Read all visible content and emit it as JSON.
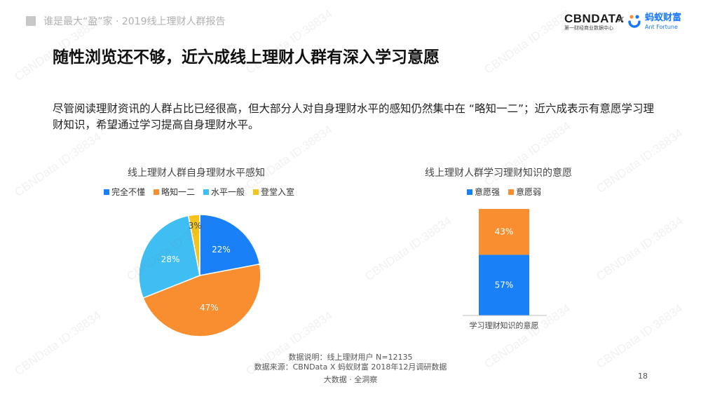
{
  "header": {
    "report_title": "谁是最大“盈”家 · 2019线上理财人群报告",
    "logo_cbn": "CBNDATA",
    "logo_cbn_sub": "第一财经商业数据中心",
    "logo_times": "×",
    "logo_ant": "蚂蚁财富",
    "logo_ant_sub": "Ant Fortune"
  },
  "title": "随性浏览还不够，近六成线上理财人群有深入学习意愿",
  "description": "尽管阅读理财资讯的人群占比已经很高，但大部分人对自身理财水平的感知仍然集中在 “略知一二”；近六成表示有意愿学习理财知识，希望通过学习提高自身理财水平。",
  "colors": {
    "blue": "#1a80f7",
    "orange": "#f88e2f",
    "light_blue": "#3fbef4",
    "yellow": "#f4c41b"
  },
  "chart_data": [
    {
      "type": "pie",
      "title": "线上理财人群自身理财水平感知",
      "categories": [
        "完全不懂",
        "略知一二",
        "水平一般",
        "登堂入室"
      ],
      "values": [
        22,
        47,
        28,
        3
      ],
      "labels": [
        "22%",
        "47%",
        "28%",
        "3%"
      ],
      "unit": "%",
      "colors": [
        "#1a80f7",
        "#f88e2f",
        "#3fbef4",
        "#f4c41b"
      ],
      "legend_position": "top"
    },
    {
      "type": "bar",
      "stacked": true,
      "title": "线上理财人群学习理财知识的意愿",
      "categories": [
        "学习理财知识的意愿"
      ],
      "series": [
        {
          "name": "意愿强",
          "values": [
            57
          ],
          "label": "57%",
          "color": "#1a80f7"
        },
        {
          "name": "意愿弱",
          "values": [
            43
          ],
          "label": "43%",
          "color": "#f88e2f"
        }
      ],
      "unit": "%",
      "ylim": [
        0,
        100
      ],
      "legend_position": "top"
    }
  ],
  "footer": {
    "note": "数据说明：线上理财用户 N=12135",
    "source": "数据来源：CBNData X 蚂蚁财富 2018年12月调研数据",
    "slogan": "大数据 · 全洞察",
    "page": "18"
  },
  "watermark_text": "CBNData ID:38834"
}
